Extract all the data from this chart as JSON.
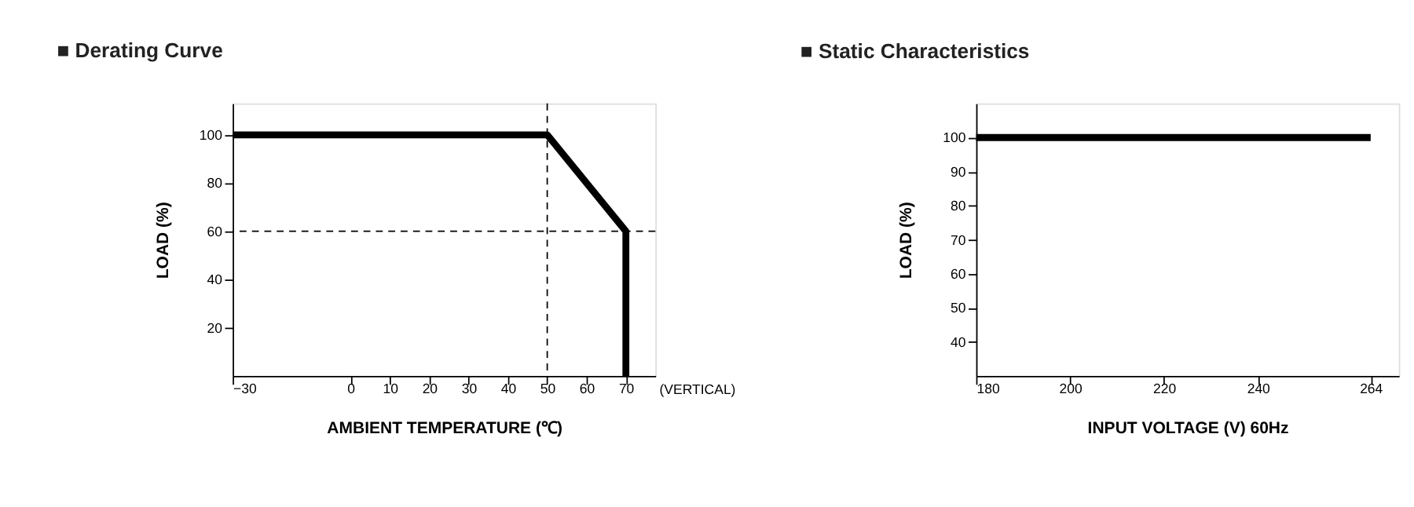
{
  "chart_data": [
    {
      "type": "line",
      "title": "■ Derating Curve",
      "xlabel": "AMBIENT TEMPERATURE (℃)",
      "ylabel": "LOAD (%)",
      "x": [
        -30,
        50,
        70,
        70
      ],
      "series": [
        {
          "color": "#000000",
          "values": [
            100,
            100,
            60,
            0
          ]
        }
      ],
      "xlim": [
        -30,
        77.5
      ],
      "xticks": [
        -30,
        0,
        10,
        20,
        30,
        40,
        50,
        60,
        70
      ],
      "ylim": [
        0,
        113
      ],
      "yticks": [
        20,
        40,
        60,
        80,
        100
      ],
      "ref_lines": [
        {
          "axis": "x",
          "value": 50,
          "line_style": "dashed",
          "color": "#000000"
        },
        {
          "axis": "y",
          "value": 60,
          "line_style": "dashed",
          "color": "#000000"
        }
      ],
      "annotations": [
        "(VERTICAL)"
      ],
      "grid": false,
      "marker": "none",
      "line_style": "solid"
    },
    {
      "type": "line",
      "title": "■ Static Characteristics",
      "xlabel": "INPUT VOLTAGE (V) 60Hz",
      "ylabel": "LOAD (%)",
      "x": [
        180,
        264
      ],
      "series": [
        {
          "color": "#000000",
          "values": [
            100,
            100
          ]
        }
      ],
      "xlim": [
        180,
        270
      ],
      "xticks": [
        180,
        200,
        220,
        240,
        264
      ],
      "ylim": [
        30,
        110
      ],
      "yticks": [
        40,
        50,
        60,
        70,
        80,
        90,
        100
      ],
      "grid": false,
      "marker": "none",
      "line_style": "solid"
    }
  ]
}
